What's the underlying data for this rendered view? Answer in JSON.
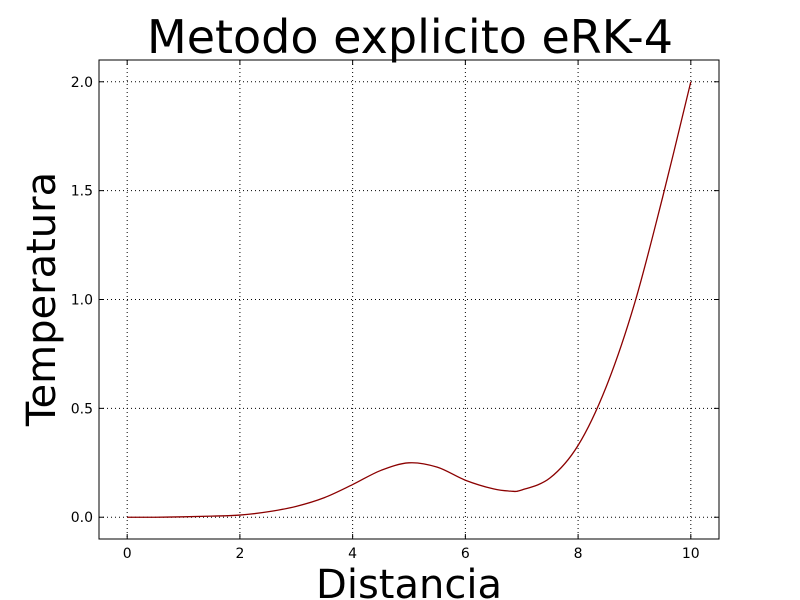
{
  "chart_data": {
    "type": "line",
    "title": "Metodo explicito eRK-4",
    "xlabel": "Distancia",
    "ylabel": "Temperatura",
    "xlim": [
      -0.5,
      10.5
    ],
    "ylim": [
      -0.1,
      2.1
    ],
    "xticks": [
      0,
      2,
      4,
      6,
      8,
      10
    ],
    "xtick_labels": [
      "0",
      "2",
      "4",
      "6",
      "8",
      "10"
    ],
    "yticks": [
      0.0,
      0.5,
      1.0,
      1.5,
      2.0
    ],
    "ytick_labels": [
      "0.0",
      "0.5",
      "1.0",
      "1.5",
      "2.0"
    ],
    "grid": true,
    "series": [
      {
        "color": "#8b0000",
        "x": [
          0,
          0.5,
          1,
          1.5,
          2,
          2.5,
          3,
          3.5,
          4,
          4.5,
          5,
          5.5,
          6,
          6.5,
          6.8,
          7,
          7.5,
          8,
          8.5,
          9,
          9.5,
          10
        ],
        "y": [
          0.0,
          0.0,
          0.002,
          0.005,
          0.01,
          0.025,
          0.05,
          0.09,
          0.15,
          0.215,
          0.25,
          0.23,
          0.17,
          0.13,
          0.12,
          0.125,
          0.18,
          0.33,
          0.6,
          0.98,
          1.47,
          2.0
        ]
      }
    ]
  }
}
